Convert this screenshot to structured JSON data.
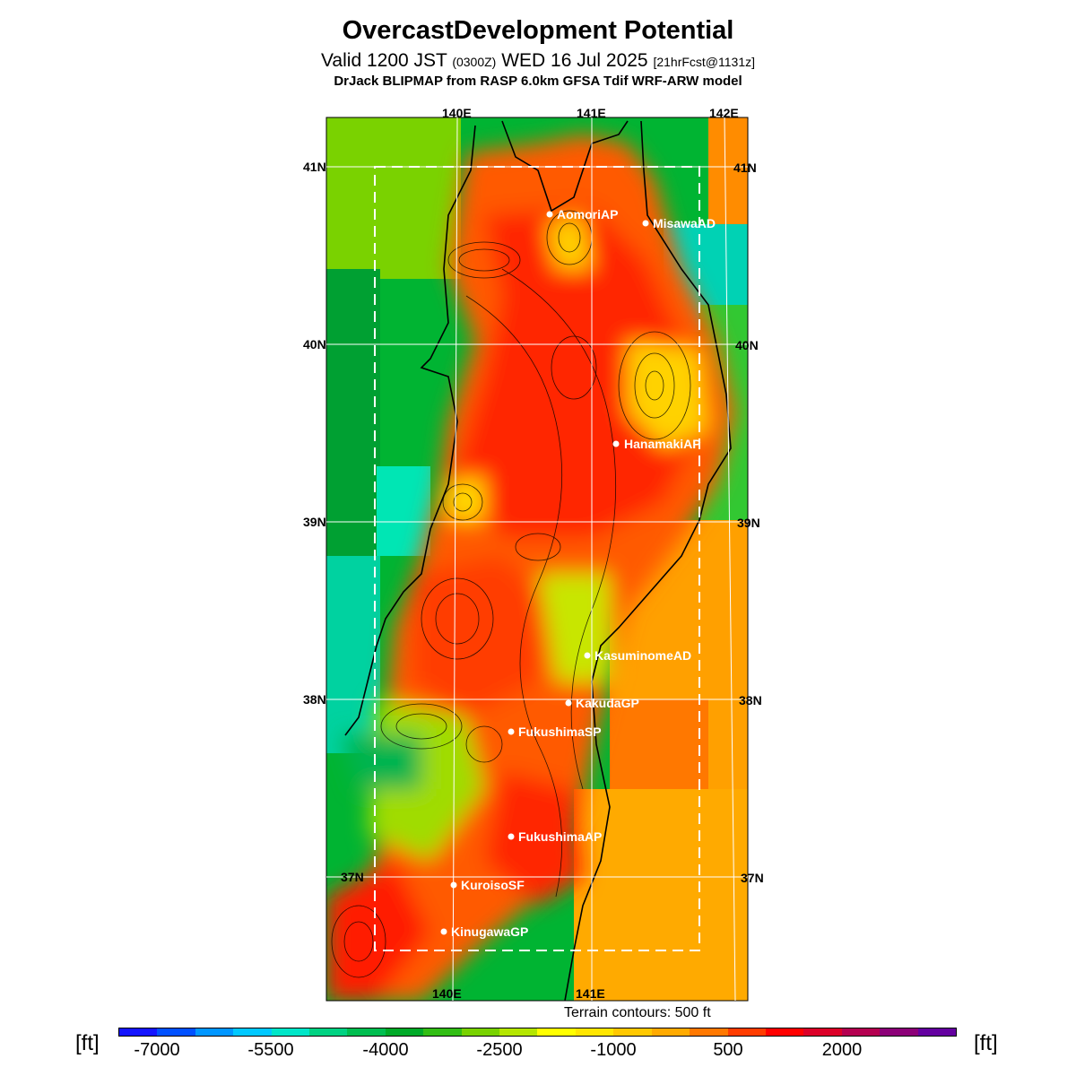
{
  "header": {
    "title": "OvercastDevelopment Potential",
    "valid_prefix": "Valid 1200 JST",
    "valid_utc": "(0300Z)",
    "valid_date": "WED 16 Jul 2025",
    "forecast": "[21hrFcst@1131z]",
    "model_line": "DrJack BLIPMAP from RASP 6.0km GFSA Tdif WRF-ARW model"
  },
  "map": {
    "lon_labels_top": [
      "140E",
      "141E",
      "142E"
    ],
    "lon_labels_bottom": [
      "140E",
      "141E"
    ],
    "lat_labels_left": [
      "41N",
      "40N",
      "39N",
      "38N",
      "37N"
    ],
    "lat_labels_right": [
      "41N",
      "40N",
      "39N",
      "38N",
      "37N"
    ],
    "stations": [
      {
        "name": "AomoriAP"
      },
      {
        "name": "MisawaAD"
      },
      {
        "name": "HanamakiAP"
      },
      {
        "name": "KasuminomeAD"
      },
      {
        "name": "KakudaGP"
      },
      {
        "name": "FukushimaSP"
      },
      {
        "name": "FukushimaAP"
      },
      {
        "name": "KuroisoSF"
      },
      {
        "name": "KinugawaGP"
      }
    ],
    "terrain_note": "Terrain contours: 500 ft"
  },
  "colorbar": {
    "unit_label": "[ft]",
    "tick_labels": [
      "-7000",
      "-5500",
      "-4000",
      "-2500",
      "-1000",
      "500",
      "2000"
    ],
    "colors": [
      "#1414ff",
      "#0050ff",
      "#0096ff",
      "#00c8ff",
      "#00e6c8",
      "#00d282",
      "#00be50",
      "#00aa28",
      "#32be14",
      "#78d200",
      "#b4e600",
      "#ffff00",
      "#ffe600",
      "#ffc800",
      "#ffaa00",
      "#ff7800",
      "#ff3c00",
      "#ff0000",
      "#dc0028",
      "#b40050",
      "#8c0078",
      "#6400a0"
    ]
  }
}
